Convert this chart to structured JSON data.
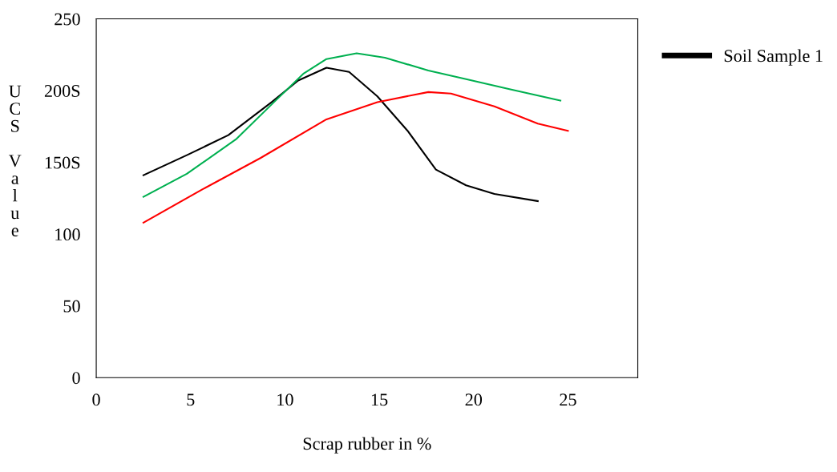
{
  "chart_data": {
    "type": "line",
    "xlabel": "Scrap rubber in %",
    "ylabel": "UCS Value",
    "xlim": [
      0,
      28.7
    ],
    "xticks": [
      0,
      5,
      10,
      15,
      20,
      25
    ],
    "ylim": [
      0,
      250
    ],
    "yticks": [
      0,
      50,
      100,
      {
        "value": 150,
        "label": "150S"
      },
      {
        "value": 200,
        "label": "200S"
      },
      250
    ],
    "grid": false,
    "legend": "top right",
    "marker": "none",
    "line_style": "solid",
    "series": [
      {
        "name": "Soil Sample 1",
        "color": "#000000",
        "x": [
          2.5,
          4.8,
          7.0,
          9.3,
          10.7,
          12.2,
          13.4,
          14.9,
          16.5,
          18.0,
          19.6,
          21.1,
          23.4
        ],
        "values": [
          141,
          155,
          169,
          192,
          207,
          216,
          213,
          196,
          172,
          145,
          134,
          128,
          123
        ]
      },
      {
        "color": "#ff0000",
        "x": [
          2.5,
          5.6,
          8.7,
          12.2,
          14.9,
          17.6,
          18.8,
          21.1,
          23.4,
          25.0
        ],
        "values": [
          108,
          131,
          153,
          180,
          192,
          199,
          198,
          189,
          177,
          172
        ]
      },
      {
        "color": "#00b050",
        "x": [
          2.5,
          4.8,
          7.4,
          9.5,
          11.0,
          12.2,
          13.8,
          15.3,
          17.6,
          19.6,
          21.9,
          24.6
        ],
        "values": [
          126,
          142,
          166,
          193,
          212,
          222,
          226,
          223,
          214,
          208,
          201,
          193
        ]
      }
    ]
  }
}
